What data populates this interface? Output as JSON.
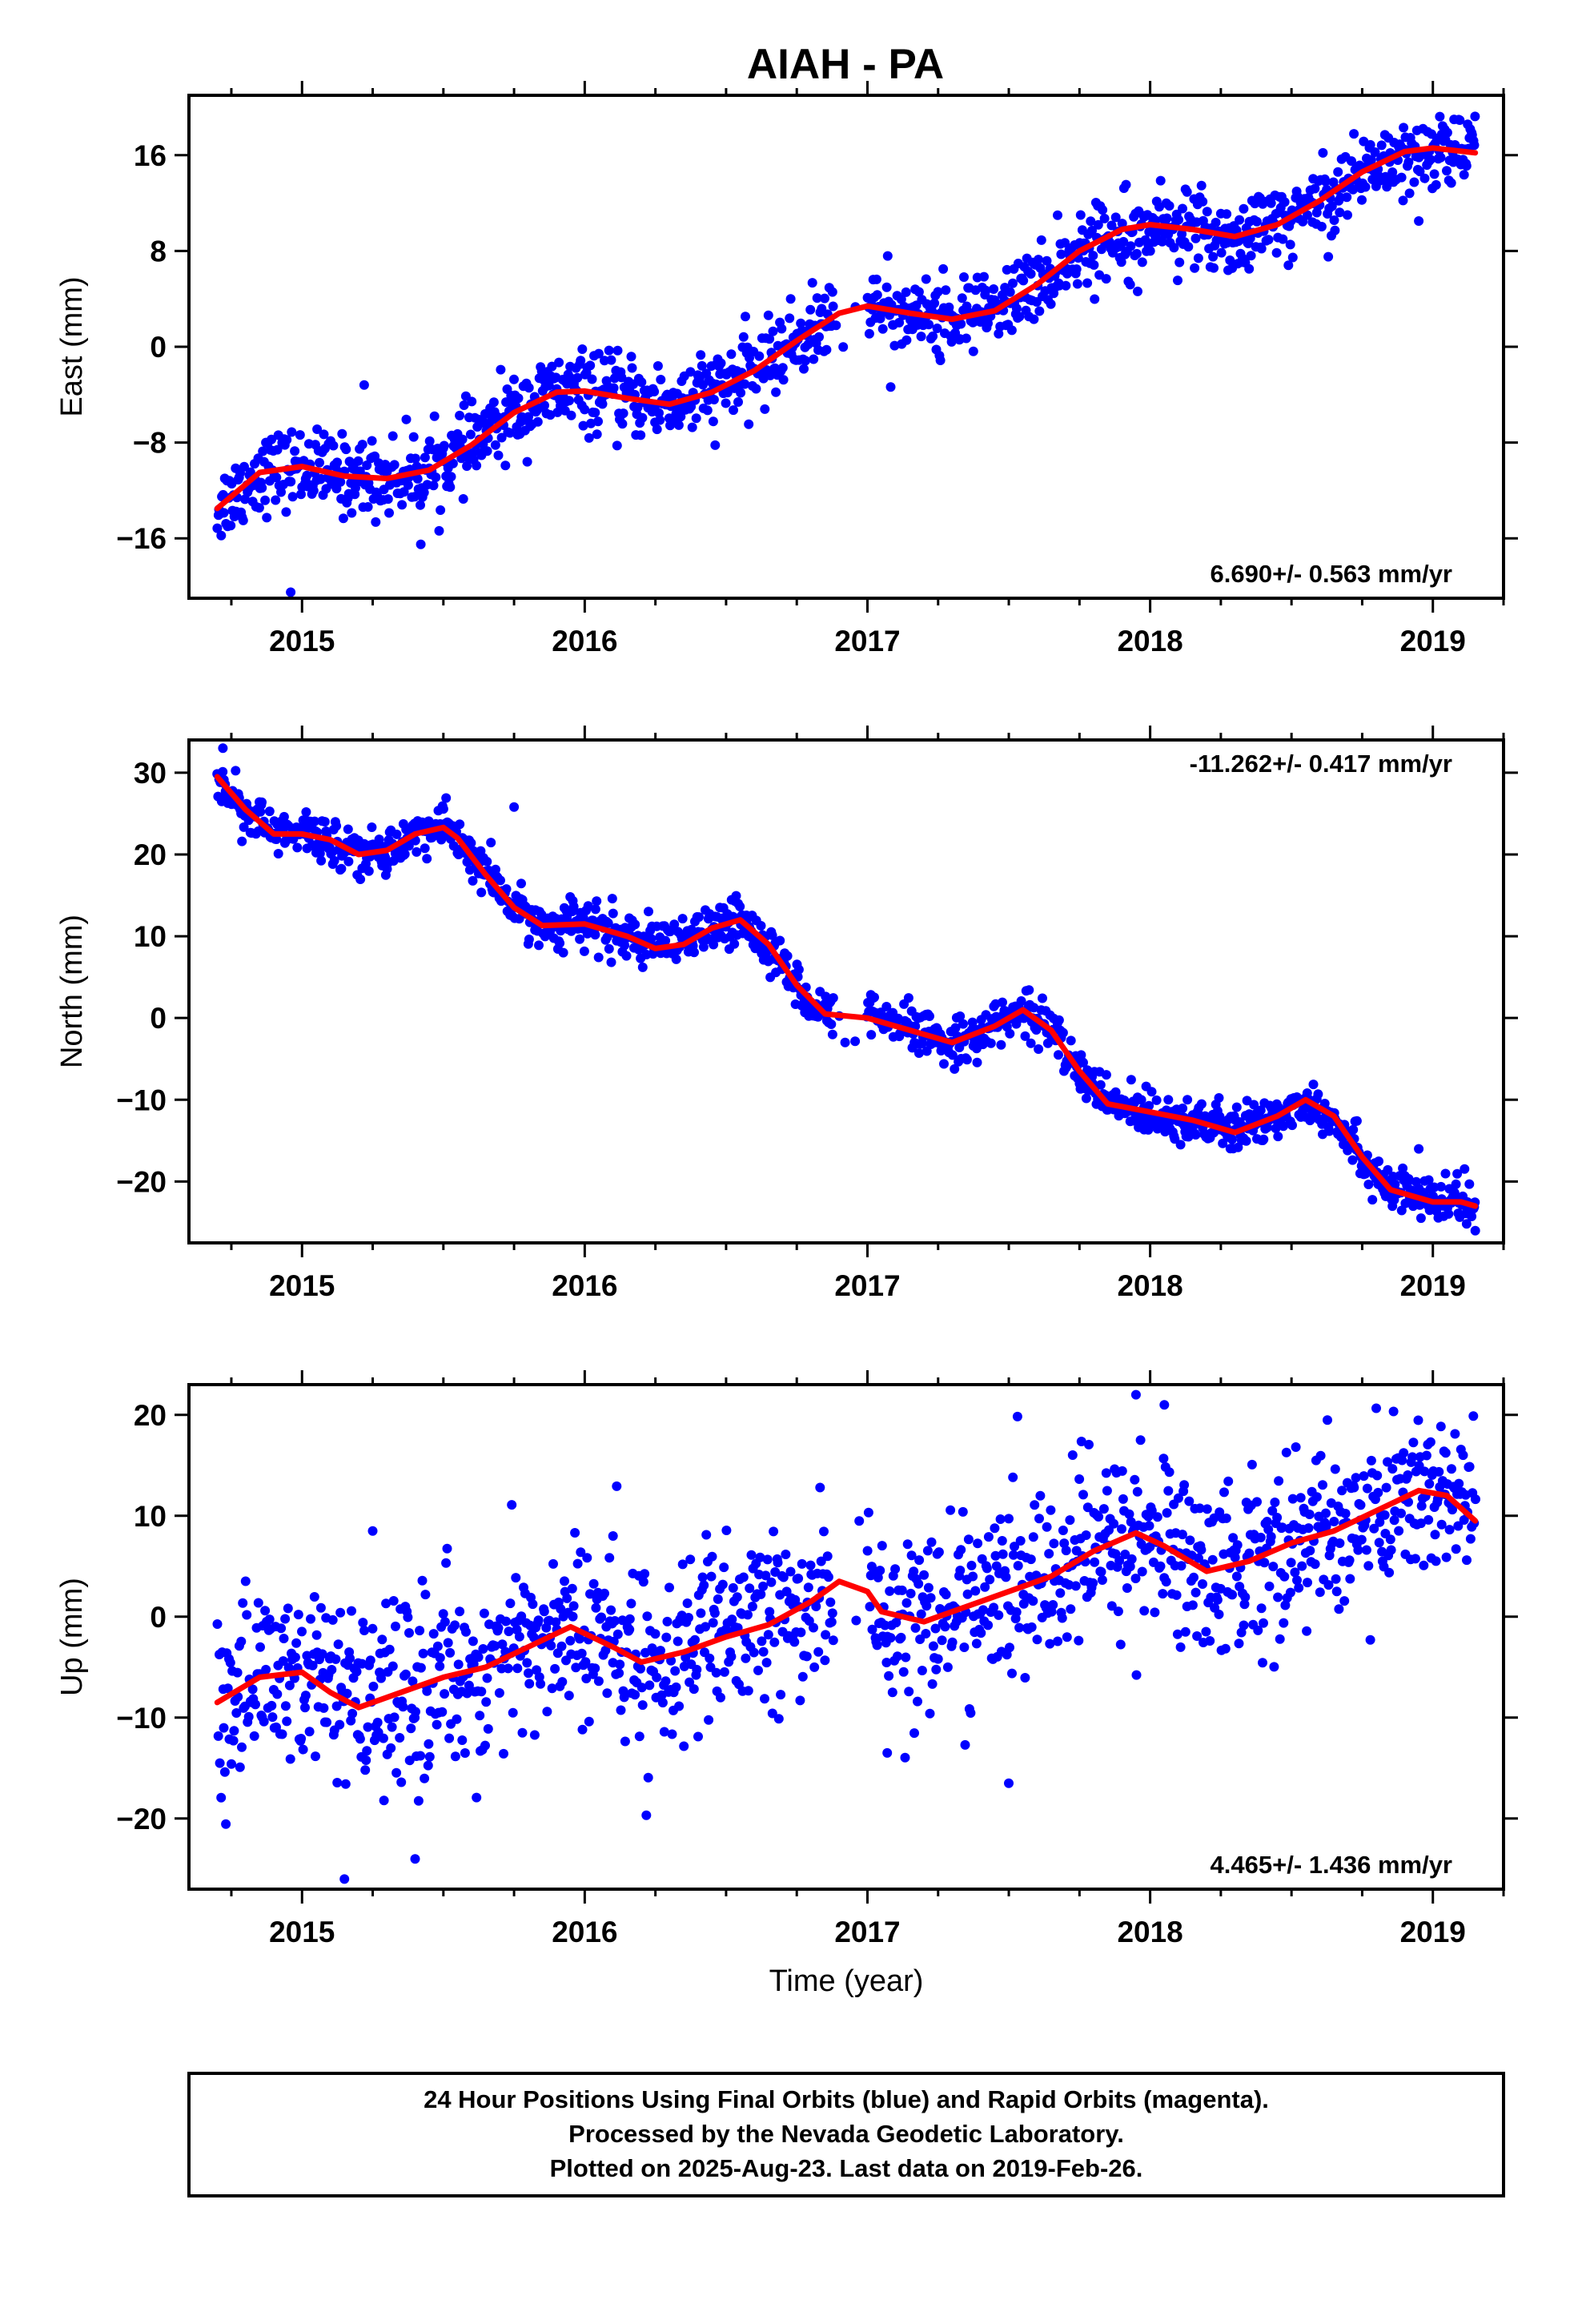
{
  "title": "AIAH - PA",
  "caption": {
    "lines": [
      "24 Hour Positions Using Final Orbits (blue) and Rapid Orbits (magenta).",
      "Processed by the Nevada Geodetic Laboratory.",
      "Plotted on 2025-Aug-23. Last data on 2019-Feb-26."
    ]
  },
  "colors": {
    "final_points": "#0000ff",
    "model_line": "#ff0000",
    "frame": "#000000"
  },
  "chart_data": [
    {
      "type": "scatter",
      "ylabel": "East (mm)",
      "xlabel": "",
      "xlim": [
        2014.6,
        2019.25
      ],
      "ylim": [
        -21,
        21
      ],
      "xticks": [
        2015,
        2016,
        2017,
        2018,
        2019
      ],
      "yticks": [
        -16,
        -8,
        0,
        8,
        16
      ],
      "rate_label": "6.690+/- 0.563 mm/yr",
      "rate_position": "bottom-right",
      "trend": {
        "x": [
          2014.7,
          2019.15
        ],
        "y": [
          -13.0,
          16.4
        ]
      },
      "model": {
        "x": [
          2014.7,
          2014.85,
          2015.0,
          2015.15,
          2015.3,
          2015.45,
          2015.6,
          2015.75,
          2015.9,
          2016.0,
          2016.15,
          2016.3,
          2016.45,
          2016.6,
          2016.75,
          2016.9,
          2017.0,
          2017.15,
          2017.3,
          2017.45,
          2017.6,
          2017.75,
          2017.9,
          2018.0,
          2018.15,
          2018.3,
          2018.45,
          2018.6,
          2018.75,
          2018.9,
          2019.0,
          2019.15
        ],
        "y": [
          -13.5,
          -10.5,
          -10.0,
          -10.8,
          -11.0,
          -10.3,
          -8.2,
          -5.5,
          -3.8,
          -3.7,
          -4.3,
          -4.8,
          -3.8,
          -2.0,
          0.5,
          2.8,
          3.4,
          2.8,
          2.3,
          3.0,
          5.2,
          8.0,
          9.8,
          10.2,
          9.8,
          9.2,
          10.2,
          12.2,
          14.6,
          16.3,
          16.6,
          16.2
        ]
      },
      "points": {
        "count": 1320,
        "x_range": [
          2014.7,
          2019.15
        ],
        "scatter_mm": 1.6,
        "gaps": [
          [
            2016.88,
            2017.0
          ]
        ],
        "outliers": [
          {
            "x": 2014.96,
            "y": -20.5
          },
          {
            "x": 2015.22,
            "y": -3.2
          },
          {
            "x": 2015.42,
            "y": -16.5
          },
          {
            "x": 2018.35,
            "y": 6.5
          },
          {
            "x": 2018.95,
            "y": 10.5
          }
        ]
      }
    },
    {
      "type": "scatter",
      "ylabel": "North (mm)",
      "xlabel": "",
      "xlim": [
        2014.6,
        2019.25
      ],
      "ylim": [
        -27.5,
        34
      ],
      "xticks": [
        2015,
        2016,
        2017,
        2018,
        2019
      ],
      "yticks": [
        -20,
        -10,
        0,
        10,
        20,
        30
      ],
      "rate_label": "-11.262+/- 0.417 mm/yr",
      "rate_position": "top-right",
      "trend": {
        "x": [
          2014.7,
          2019.15
        ],
        "y": [
          29.0,
          -24.0
        ]
      },
      "model": {
        "x": [
          2014.7,
          2014.8,
          2014.9,
          2015.0,
          2015.1,
          2015.2,
          2015.3,
          2015.4,
          2015.5,
          2015.55,
          2015.65,
          2015.75,
          2015.85,
          2016.0,
          2016.15,
          2016.25,
          2016.35,
          2016.45,
          2016.55,
          2016.65,
          2016.75,
          2016.85,
          2017.0,
          2017.15,
          2017.3,
          2017.45,
          2017.55,
          2017.65,
          2017.75,
          2017.85,
          2018.0,
          2018.15,
          2018.3,
          2018.45,
          2018.55,
          2018.65,
          2018.75,
          2018.85,
          2019.0,
          2019.1,
          2019.15
        ],
        "y": [
          29.5,
          25.5,
          22.5,
          22.5,
          21.8,
          20.0,
          20.5,
          22.5,
          23.3,
          22.0,
          17.5,
          13.5,
          11.3,
          11.5,
          10.0,
          8.5,
          9.0,
          11.0,
          12.0,
          9.0,
          4.0,
          0.5,
          0.0,
          -1.5,
          -3.0,
          -1.0,
          1.0,
          -1.5,
          -6.5,
          -10.5,
          -11.5,
          -12.5,
          -14.0,
          -12.0,
          -10.0,
          -12.0,
          -17.0,
          -21.0,
          -22.5,
          -22.5,
          -23.0
        ]
      },
      "points": {
        "count": 1320,
        "x_range": [
          2014.7,
          2019.15
        ],
        "scatter_mm": 1.4,
        "gaps": [
          [
            2016.88,
            2017.0
          ]
        ],
        "outliers": [
          {
            "x": 2014.72,
            "y": 33.0
          },
          {
            "x": 2015.75,
            "y": 25.8
          },
          {
            "x": 2018.95,
            "y": -16.0
          },
          {
            "x": 2019.15,
            "y": -26.0
          }
        ]
      }
    },
    {
      "type": "scatter",
      "ylabel": "Up (mm)",
      "xlabel": "Time (year)",
      "xlim": [
        2014.6,
        2019.25
      ],
      "ylim": [
        -27,
        23
      ],
      "xticks": [
        2015,
        2016,
        2017,
        2018,
        2019
      ],
      "yticks": [
        -20,
        -10,
        0,
        10,
        20
      ],
      "rate_label": "4.465+/- 1.436 mm/yr",
      "rate_position": "bottom-right",
      "trend": {
        "x": [
          2014.7,
          2019.15
        ],
        "y": [
          -8.5,
          9.5
        ]
      },
      "model": {
        "x": [
          2014.7,
          2014.85,
          2015.0,
          2015.1,
          2015.2,
          2015.35,
          2015.5,
          2015.65,
          2015.8,
          2015.95,
          2016.1,
          2016.2,
          2016.35,
          2016.5,
          2016.65,
          2016.8,
          2016.9,
          2017.0,
          2017.05,
          2017.2,
          2017.35,
          2017.5,
          2017.65,
          2017.8,
          2017.95,
          2018.05,
          2018.2,
          2018.35,
          2018.5,
          2018.65,
          2018.8,
          2018.95,
          2019.05,
          2019.15
        ],
        "y": [
          -8.5,
          -6.0,
          -5.5,
          -7.5,
          -9.0,
          -7.5,
          -6.0,
          -5.0,
          -3.0,
          -1.0,
          -3.0,
          -4.5,
          -3.5,
          -2.0,
          -0.8,
          1.5,
          3.5,
          2.5,
          0.5,
          -0.5,
          1.0,
          2.5,
          4.0,
          6.5,
          8.3,
          7.0,
          4.5,
          5.5,
          7.3,
          8.5,
          10.5,
          12.5,
          12.0,
          9.5
        ]
      },
      "points": {
        "count": 1320,
        "x_range": [
          2014.7,
          2019.15
        ],
        "scatter_mm": 4.5,
        "gaps": [
          [
            2016.88,
            2017.0
          ]
        ],
        "outliers": [
          {
            "x": 2015.15,
            "y": -26.0
          },
          {
            "x": 2015.4,
            "y": -24.0
          },
          {
            "x": 2017.07,
            "y": -13.5
          },
          {
            "x": 2017.5,
            "y": -16.5
          },
          {
            "x": 2017.95,
            "y": 22.0
          },
          {
            "x": 2018.05,
            "y": 21.0
          },
          {
            "x": 2015.25,
            "y": 8.5
          },
          {
            "x": 2016.1,
            "y": 8.0
          }
        ]
      }
    }
  ]
}
